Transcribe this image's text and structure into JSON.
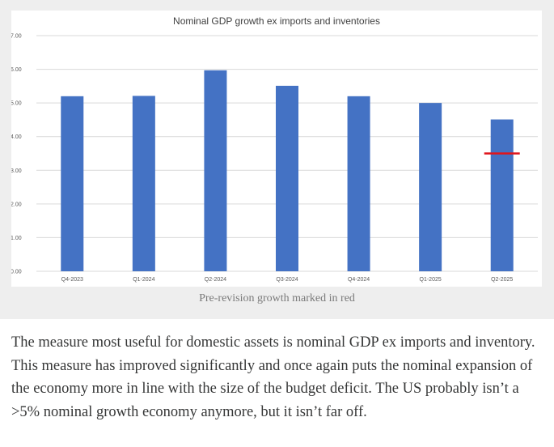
{
  "chart_data": {
    "type": "bar",
    "title": "Nominal GDP growth ex imports and inventories",
    "categories": [
      "Q4-2023",
      "Q1-2024",
      "Q2-2024",
      "Q3-2024",
      "Q4-2024",
      "Q1-2025",
      "Q2-2025"
    ],
    "series": [
      {
        "name": "Nominal GDP growth ex imports and inventories",
        "values": [
          5.2,
          5.21,
          5.97,
          5.51,
          5.2,
          5.0,
          4.51
        ],
        "color": "#4472c4"
      }
    ],
    "annotations": [
      {
        "category": "Q2-2025",
        "value": 3.5,
        "label": "Pre-revision growth",
        "color": "#e0151b"
      }
    ],
    "ylim": [
      0,
      7
    ],
    "yticks": [
      "0.00",
      "1.00",
      "2.00",
      "3.00",
      "4.00",
      "5.00",
      "6.00",
      "7.00"
    ],
    "xlabel": "",
    "ylabel": "",
    "grid": true,
    "legend": "none"
  },
  "caption": "Pre-revision growth marked in red",
  "paragraph": "The measure most useful for domestic assets is nominal GDP ex imports and inventory. This measure has improved significantly and once again puts the nominal expansion of the economy more in line with the size of the budget deficit. The US probably isn’t a >5% nominal growth economy anymore, but it isn’t far off."
}
